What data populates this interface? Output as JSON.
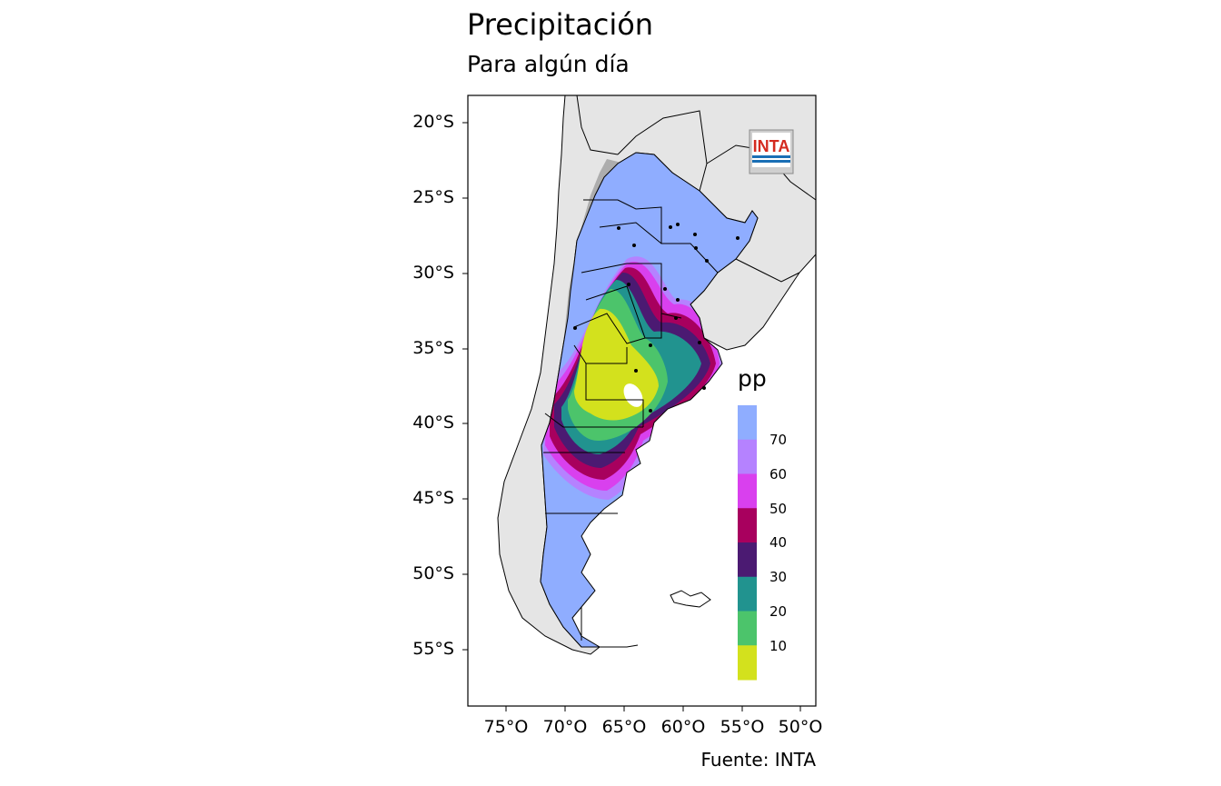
{
  "title": "Precipitación",
  "subtitle": "Para algún día",
  "caption": "Fuente: INTA",
  "logo_text": "INTA",
  "y_ticks": [
    "20°S",
    "25°S",
    "30°S",
    "35°S",
    "40°S",
    "45°S",
    "50°S",
    "55°S"
  ],
  "x_ticks": [
    "75°O",
    "70°O",
    "65°O",
    "60°O",
    "55°O",
    "50°O"
  ],
  "legend": {
    "title": "pp",
    "labels": [
      "70",
      "60",
      "50",
      "40",
      "30",
      "20",
      "10"
    ],
    "colors": [
      "#8fadff",
      "#b582ff",
      "#d940ee",
      "#a8005e",
      "#4b1a72",
      "#21938f",
      "#4cc46b",
      "#d3e11d"
    ]
  },
  "colors": {
    "land": "#e5e5e5",
    "ocean": "#ffffff",
    "relief": "#a6a6a6"
  }
}
